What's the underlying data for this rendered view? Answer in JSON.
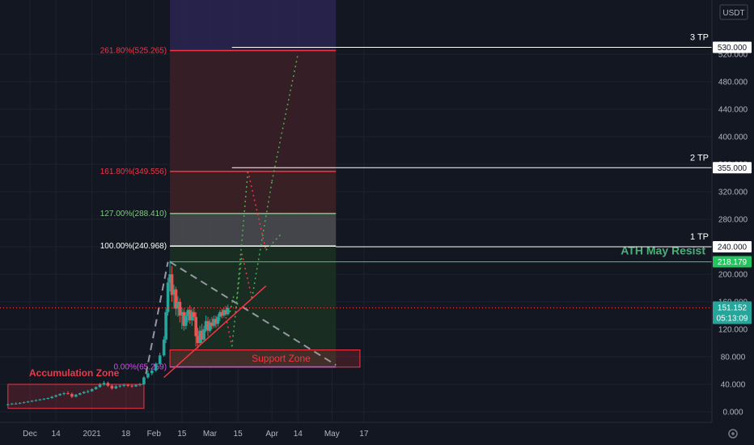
{
  "chart_data": {
    "type": "candlestick",
    "currency_label": "USDT",
    "y_axis": {
      "range": [
        -10,
        560
      ],
      "ticks": [
        0,
        40,
        80,
        120,
        160,
        200,
        240,
        280,
        320,
        360,
        400,
        440,
        480,
        520
      ],
      "tick_labels": [
        "0.000",
        "40.000",
        "80.000",
        "120.000",
        "160.000",
        "200.000",
        "240.000",
        "280.000",
        "320.000",
        "360.000",
        "400.000",
        "440.000",
        "480.000",
        "520.000"
      ]
    },
    "x_axis": {
      "range": [
        "2020-11-20",
        "2021-06-01"
      ],
      "ticks": [
        {
          "date": "2020-12-01",
          "label": "Dec"
        },
        {
          "date": "2020-12-14",
          "label": "14"
        },
        {
          "date": "2021-01-01",
          "label": "2021"
        },
        {
          "date": "2021-01-18",
          "label": "18"
        },
        {
          "date": "2021-02-01",
          "label": "Feb"
        },
        {
          "date": "2021-02-15",
          "label": "15"
        },
        {
          "date": "2021-03-01",
          "label": "Mar"
        },
        {
          "date": "2021-03-15",
          "label": "15"
        },
        {
          "date": "2021-04-01",
          "label": "Apr"
        },
        {
          "date": "2021-04-14",
          "label": "14"
        },
        {
          "date": "2021-05-01",
          "label": "May"
        },
        {
          "date": "2021-05-17",
          "label": "17"
        }
      ]
    },
    "candles": [
      {
        "date": "2020-11-20",
        "o": 10,
        "h": 12,
        "l": 9,
        "c": 11
      },
      {
        "date": "2020-11-22",
        "o": 11,
        "h": 13,
        "l": 10,
        "c": 12
      },
      {
        "date": "2020-11-24",
        "o": 12,
        "h": 14,
        "l": 11,
        "c": 12
      },
      {
        "date": "2020-11-26",
        "o": 12,
        "h": 14,
        "l": 11,
        "c": 13
      },
      {
        "date": "2020-11-28",
        "o": 13,
        "h": 15,
        "l": 12,
        "c": 14
      },
      {
        "date": "2020-11-30",
        "o": 14,
        "h": 16,
        "l": 13,
        "c": 15
      },
      {
        "date": "2020-12-02",
        "o": 15,
        "h": 17,
        "l": 14,
        "c": 16
      },
      {
        "date": "2020-12-04",
        "o": 16,
        "h": 18,
        "l": 15,
        "c": 17
      },
      {
        "date": "2020-12-06",
        "o": 17,
        "h": 19,
        "l": 16,
        "c": 18
      },
      {
        "date": "2020-12-08",
        "o": 18,
        "h": 20,
        "l": 17,
        "c": 19
      },
      {
        "date": "2020-12-10",
        "o": 19,
        "h": 21,
        "l": 18,
        "c": 20
      },
      {
        "date": "2020-12-12",
        "o": 20,
        "h": 23,
        "l": 19,
        "c": 22
      },
      {
        "date": "2020-12-14",
        "o": 22,
        "h": 25,
        "l": 21,
        "c": 24
      },
      {
        "date": "2020-12-16",
        "o": 24,
        "h": 27,
        "l": 23,
        "c": 26
      },
      {
        "date": "2020-12-18",
        "o": 26,
        "h": 29,
        "l": 24,
        "c": 27
      },
      {
        "date": "2020-12-20",
        "o": 27,
        "h": 30,
        "l": 25,
        "c": 26
      },
      {
        "date": "2020-12-22",
        "o": 26,
        "h": 28,
        "l": 20,
        "c": 22
      },
      {
        "date": "2020-12-24",
        "o": 22,
        "h": 26,
        "l": 21,
        "c": 25
      },
      {
        "date": "2020-12-26",
        "o": 25,
        "h": 28,
        "l": 24,
        "c": 27
      },
      {
        "date": "2020-12-28",
        "o": 27,
        "h": 30,
        "l": 26,
        "c": 29
      },
      {
        "date": "2020-12-30",
        "o": 29,
        "h": 32,
        "l": 27,
        "c": 30
      },
      {
        "date": "2021-01-01",
        "o": 30,
        "h": 34,
        "l": 29,
        "c": 33
      },
      {
        "date": "2021-01-03",
        "o": 33,
        "h": 37,
        "l": 32,
        "c": 36
      },
      {
        "date": "2021-01-05",
        "o": 36,
        "h": 42,
        "l": 35,
        "c": 40
      },
      {
        "date": "2021-01-07",
        "o": 40,
        "h": 45,
        "l": 38,
        "c": 42
      },
      {
        "date": "2021-01-09",
        "o": 42,
        "h": 44,
        "l": 36,
        "c": 38
      },
      {
        "date": "2021-01-11",
        "o": 38,
        "h": 40,
        "l": 32,
        "c": 34
      },
      {
        "date": "2021-01-13",
        "o": 34,
        "h": 39,
        "l": 33,
        "c": 37
      },
      {
        "date": "2021-01-15",
        "o": 37,
        "h": 40,
        "l": 35,
        "c": 38
      },
      {
        "date": "2021-01-17",
        "o": 38,
        "h": 41,
        "l": 36,
        "c": 39
      },
      {
        "date": "2021-01-19",
        "o": 39,
        "h": 41,
        "l": 36,
        "c": 38
      },
      {
        "date": "2021-01-21",
        "o": 38,
        "h": 40,
        "l": 35,
        "c": 37
      },
      {
        "date": "2021-01-23",
        "o": 37,
        "h": 40,
        "l": 36,
        "c": 39
      },
      {
        "date": "2021-01-25",
        "o": 39,
        "h": 42,
        "l": 37,
        "c": 40
      },
      {
        "date": "2021-01-27",
        "o": 40,
        "h": 52,
        "l": 39,
        "c": 50
      },
      {
        "date": "2021-01-29",
        "o": 50,
        "h": 60,
        "l": 48,
        "c": 56
      },
      {
        "date": "2021-01-31",
        "o": 56,
        "h": 63,
        "l": 53,
        "c": 60
      },
      {
        "date": "2021-02-02",
        "o": 60,
        "h": 72,
        "l": 58,
        "c": 70
      },
      {
        "date": "2021-02-04",
        "o": 70,
        "h": 86,
        "l": 68,
        "c": 82
      },
      {
        "date": "2021-02-06",
        "o": 82,
        "h": 110,
        "l": 80,
        "c": 105
      },
      {
        "date": "2021-02-07",
        "o": 105,
        "h": 150,
        "l": 100,
        "c": 145
      },
      {
        "date": "2021-02-08",
        "o": 145,
        "h": 195,
        "l": 140,
        "c": 188
      },
      {
        "date": "2021-02-09",
        "o": 188,
        "h": 220,
        "l": 175,
        "c": 200
      },
      {
        "date": "2021-02-10",
        "o": 200,
        "h": 212,
        "l": 160,
        "c": 170
      },
      {
        "date": "2021-02-11",
        "o": 170,
        "h": 185,
        "l": 150,
        "c": 178
      },
      {
        "date": "2021-02-12",
        "o": 178,
        "h": 182,
        "l": 140,
        "c": 150
      },
      {
        "date": "2021-02-13",
        "o": 150,
        "h": 168,
        "l": 138,
        "c": 160
      },
      {
        "date": "2021-02-14",
        "o": 160,
        "h": 165,
        "l": 130,
        "c": 140
      },
      {
        "date": "2021-02-15",
        "o": 140,
        "h": 152,
        "l": 120,
        "c": 145
      },
      {
        "date": "2021-02-16",
        "o": 145,
        "h": 150,
        "l": 118,
        "c": 125
      },
      {
        "date": "2021-02-17",
        "o": 125,
        "h": 145,
        "l": 120,
        "c": 140
      },
      {
        "date": "2021-02-18",
        "o": 140,
        "h": 152,
        "l": 130,
        "c": 148
      },
      {
        "date": "2021-02-19",
        "o": 148,
        "h": 155,
        "l": 128,
        "c": 133
      },
      {
        "date": "2021-02-20",
        "o": 133,
        "h": 150,
        "l": 125,
        "c": 145
      },
      {
        "date": "2021-02-21",
        "o": 145,
        "h": 152,
        "l": 132,
        "c": 138
      },
      {
        "date": "2021-02-22",
        "o": 138,
        "h": 145,
        "l": 95,
        "c": 110
      },
      {
        "date": "2021-02-23",
        "o": 110,
        "h": 122,
        "l": 92,
        "c": 100
      },
      {
        "date": "2021-02-24",
        "o": 100,
        "h": 125,
        "l": 98,
        "c": 118
      },
      {
        "date": "2021-02-25",
        "o": 118,
        "h": 128,
        "l": 100,
        "c": 105
      },
      {
        "date": "2021-02-26",
        "o": 105,
        "h": 125,
        "l": 102,
        "c": 120
      },
      {
        "date": "2021-02-27",
        "o": 120,
        "h": 140,
        "l": 116,
        "c": 132
      },
      {
        "date": "2021-02-28",
        "o": 132,
        "h": 138,
        "l": 110,
        "c": 118
      },
      {
        "date": "2021-03-01",
        "o": 118,
        "h": 135,
        "l": 115,
        "c": 130
      },
      {
        "date": "2021-03-02",
        "o": 130,
        "h": 138,
        "l": 120,
        "c": 125
      },
      {
        "date": "2021-03-03",
        "o": 125,
        "h": 140,
        "l": 122,
        "c": 135
      },
      {
        "date": "2021-03-04",
        "o": 135,
        "h": 140,
        "l": 122,
        "c": 128
      },
      {
        "date": "2021-03-05",
        "o": 128,
        "h": 142,
        "l": 124,
        "c": 138
      },
      {
        "date": "2021-03-06",
        "o": 138,
        "h": 148,
        "l": 132,
        "c": 145
      },
      {
        "date": "2021-03-07",
        "o": 145,
        "h": 150,
        "l": 136,
        "c": 140
      },
      {
        "date": "2021-03-08",
        "o": 140,
        "h": 152,
        "l": 137,
        "c": 148
      },
      {
        "date": "2021-03-09",
        "o": 148,
        "h": 154,
        "l": 140,
        "c": 142
      },
      {
        "date": "2021-03-10",
        "o": 142,
        "h": 156,
        "l": 140,
        "c": 151
      }
    ],
    "fib_levels": [
      {
        "label": "261.80%(525.265)",
        "value": 525.265,
        "color": "#f23645"
      },
      {
        "label": "161.80%(349.556)",
        "value": 349.556,
        "color": "#f23645"
      },
      {
        "label": "127.00%(288.410)",
        "value": 288.41,
        "color": "#81c784"
      },
      {
        "label": "100.00%(240.968)",
        "value": 240.968,
        "color": "#ffffff"
      },
      {
        "label": "0.00%(65.259)",
        "value": 65.259,
        "color": "#d050e8"
      }
    ],
    "fib_range": {
      "start": "2021-02-09",
      "end": "2021-05-03"
    },
    "targets": [
      {
        "label": "3 TP",
        "value": 530,
        "tag": "530.000",
        "start": "2021-03-12"
      },
      {
        "label": "2 TP",
        "value": 355,
        "tag": "355.000",
        "start": "2021-03-12"
      },
      {
        "label": "1 TP",
        "value": 240,
        "tag": "240.000",
        "start": "2021-05-03"
      }
    ],
    "ath_line": {
      "label": "ATH May Resist",
      "value": 218.179,
      "tag": "218.179",
      "color": "#22c55e"
    },
    "current_price": {
      "value": 151.152,
      "tag": "151.152",
      "countdown": "05:13:09",
      "color": "#26a69a"
    },
    "zones": [
      {
        "label": "Accumulation Zone",
        "start": "2020-11-20",
        "end": "2021-01-27",
        "top": 40,
        "bottom": 5
      },
      {
        "label": "Support Zone",
        "start": "2021-02-09",
        "end": "2021-05-15",
        "top": 90,
        "bottom": 65
      }
    ],
    "trendlines": [
      {
        "kind": "dashed-gray",
        "from": [
          "2021-01-28",
          55
        ],
        "to": [
          "2021-02-08",
          218
        ]
      },
      {
        "kind": "dashed-gray",
        "from": [
          "2021-02-09",
          218
        ],
        "to": [
          "2021-05-03",
          68
        ]
      },
      {
        "kind": "solid-red",
        "from": [
          "2021-02-06",
          50
        ],
        "to": [
          "2021-03-29",
          183
        ]
      }
    ],
    "projections": [
      {
        "color": "#4caf50",
        "points": [
          [
            "2021-03-11",
            145
          ],
          [
            "2021-03-13",
            170
          ]
        ]
      },
      {
        "color": "#f23645",
        "points": [
          [
            "2021-03-09",
            138
          ],
          [
            "2021-03-12",
            95
          ]
        ]
      },
      {
        "color": "#4caf50",
        "points": [
          [
            "2021-03-12",
            95
          ],
          [
            "2021-03-17",
            230
          ]
        ]
      },
      {
        "color": "#f23645",
        "points": [
          [
            "2021-03-17",
            230
          ],
          [
            "2021-03-22",
            165
          ]
        ]
      },
      {
        "color": "#4caf50",
        "points": [
          [
            "2021-03-14",
            150
          ],
          [
            "2021-03-20",
            350
          ]
        ]
      },
      {
        "color": "#f23645",
        "points": [
          [
            "2021-03-20",
            350
          ],
          [
            "2021-03-29",
            235
          ]
        ]
      },
      {
        "color": "#4caf50",
        "points": [
          [
            "2021-03-22",
            165
          ],
          [
            "2021-04-01",
            335
          ]
        ]
      },
      {
        "color": "#4caf50",
        "points": [
          [
            "2021-03-29",
            235
          ],
          [
            "2021-04-06",
            260
          ]
        ]
      },
      {
        "color": "#4caf50",
        "points": [
          [
            "2021-04-01",
            335
          ],
          [
            "2021-04-14",
            520
          ]
        ]
      }
    ]
  }
}
